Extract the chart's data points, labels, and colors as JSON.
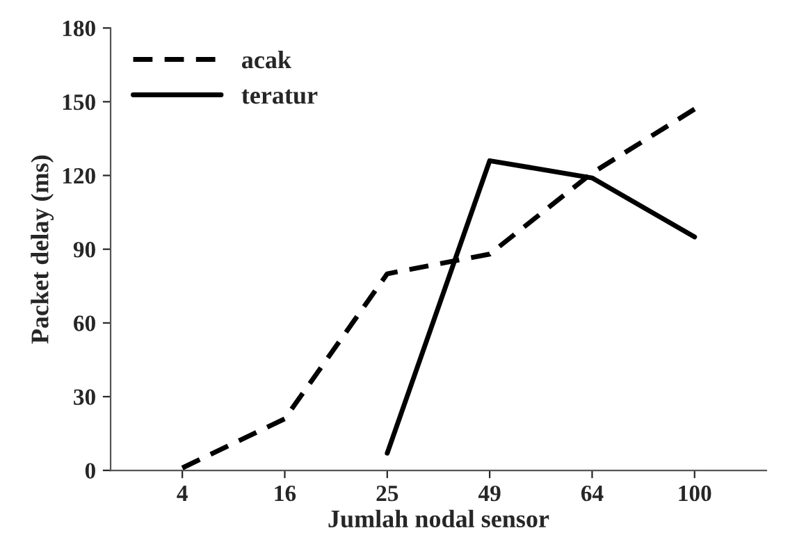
{
  "chart_data": {
    "type": "line",
    "xlabel": "Jumlah nodal sensor",
    "ylabel": "Packet delay (ms)",
    "categories": [
      "4",
      "16",
      "25",
      "49",
      "64",
      "100"
    ],
    "series": [
      {
        "name": "acak",
        "color": "#000000",
        "line_style": "dashed",
        "values": [
          1,
          21,
          80,
          88,
          121,
          147
        ]
      },
      {
        "name": "teratur",
        "color": "#000000",
        "line_style": "solid",
        "values": [
          null,
          null,
          7,
          126,
          119,
          95
        ]
      }
    ],
    "ylim": [
      0,
      180
    ],
    "yticks": [
      0,
      30,
      60,
      90,
      120,
      150,
      180
    ],
    "grid": false,
    "legend": "top left",
    "marker": "none"
  }
}
